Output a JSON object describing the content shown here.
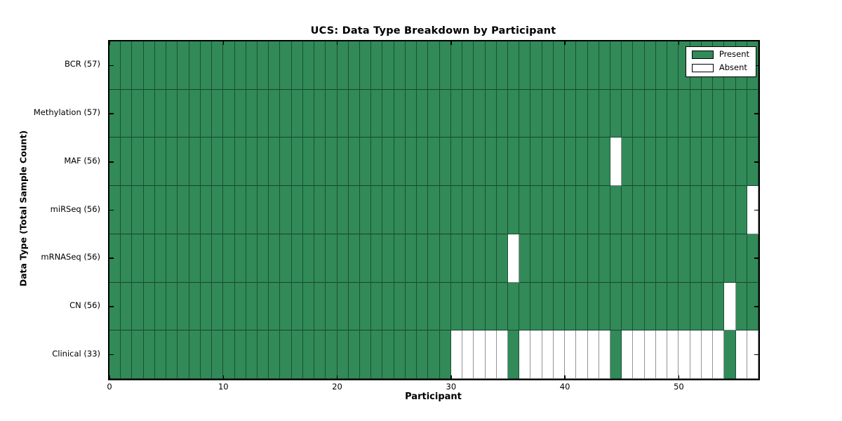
{
  "title": "UCS: Data Type Breakdown by Participant",
  "xlabel": "Participant",
  "ylabel": "Data Type (Total Sample Count)",
  "legend": {
    "present_label": "Present",
    "absent_label": "Absent"
  },
  "colors": {
    "present": "#318a58",
    "absent": "#ffffff"
  },
  "x_ticks": [
    0,
    10,
    20,
    30,
    40,
    50
  ],
  "chart_data": {
    "type": "heatmap",
    "title": "UCS: Data Type Breakdown by Participant",
    "xlabel": "Participant",
    "ylabel": "Data Type (Total Sample Count)",
    "x_range": [
      0,
      57
    ],
    "n_participants": 57,
    "legend_entries": [
      "Present",
      "Absent"
    ],
    "legend_position": "upper right",
    "cell_states": [
      "present",
      "absent"
    ],
    "rows": [
      {
        "label": "BCR (57)",
        "data_type": "BCR",
        "total_samples": 57,
        "absent_participants": []
      },
      {
        "label": "Methylation (57)",
        "data_type": "Methylation",
        "total_samples": 57,
        "absent_participants": []
      },
      {
        "label": "MAF (56)",
        "data_type": "MAF",
        "total_samples": 56,
        "absent_participants": [
          44
        ]
      },
      {
        "label": "miRSeq (56)",
        "data_type": "miRSeq",
        "total_samples": 56,
        "absent_participants": [
          56
        ]
      },
      {
        "label": "mRNASeq (56)",
        "data_type": "mRNASeq",
        "total_samples": 56,
        "absent_participants": [
          35
        ]
      },
      {
        "label": "CN (56)",
        "data_type": "CN",
        "total_samples": 56,
        "absent_participants": [
          54
        ]
      },
      {
        "label": "Clinical (33)",
        "data_type": "Clinical",
        "total_samples": 33,
        "absent_participants": [
          30,
          31,
          32,
          33,
          34,
          36,
          37,
          38,
          39,
          40,
          41,
          42,
          43,
          45,
          46,
          47,
          48,
          49,
          50,
          51,
          52,
          53,
          55,
          56
        ]
      }
    ]
  }
}
